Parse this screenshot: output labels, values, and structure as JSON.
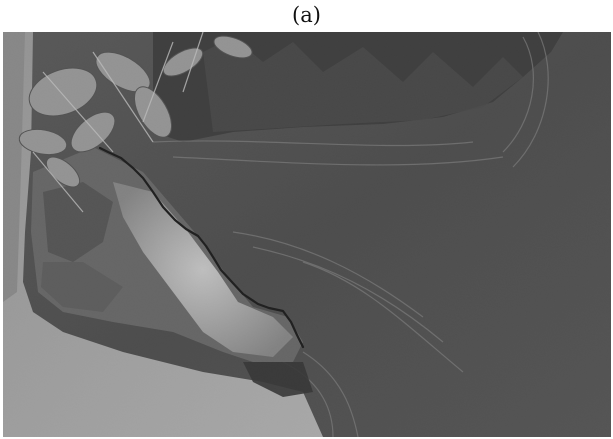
{
  "figure": {
    "caption": "(a)"
  },
  "photo": {
    "description_icon": "grayscale-photo",
    "palette": {
      "water_dark": "#3b3b3b",
      "water_mid": "#5a5a5a",
      "stone_light": "#a9a9a9",
      "foliage": "#8c8c8c",
      "edge_line": "#000000"
    }
  }
}
